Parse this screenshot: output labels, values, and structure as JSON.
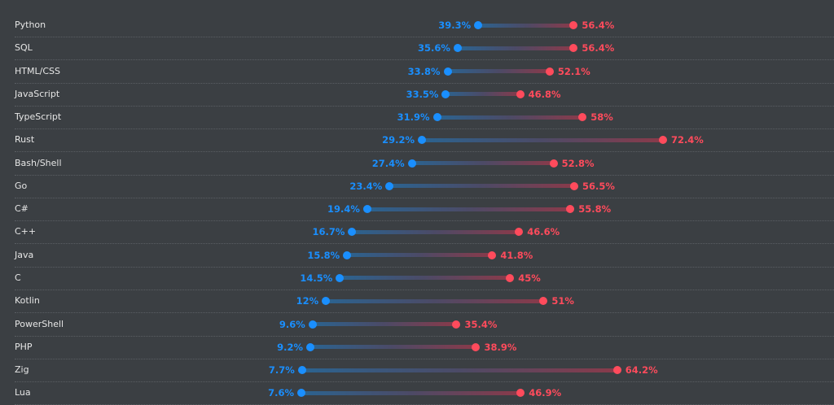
{
  "chart_data": {
    "type": "dumbbell",
    "colors": {
      "low": "#1a8fff",
      "high": "#ff4b5c"
    },
    "categories": [
      "Python",
      "SQL",
      "HTML/CSS",
      "JavaScript",
      "TypeScript",
      "Rust",
      "Bash/Shell",
      "Go",
      "C#",
      "C++",
      "Java",
      "C",
      "Kotlin",
      "PowerShell",
      "PHP",
      "Zig",
      "Lua"
    ],
    "series": [
      {
        "values": [
          39.3,
          35.6,
          33.8,
          33.5,
          31.9,
          29.2,
          27.4,
          23.4,
          19.4,
          16.7,
          15.8,
          14.5,
          12,
          9.6,
          9.2,
          7.7,
          7.6
        ]
      },
      {
        "values": [
          56.4,
          56.4,
          52.1,
          46.8,
          58,
          72.4,
          52.8,
          56.5,
          55.8,
          46.6,
          41.8,
          45,
          51,
          35.4,
          38.9,
          64.2,
          46.9
        ]
      }
    ],
    "value_suffix": "%"
  }
}
